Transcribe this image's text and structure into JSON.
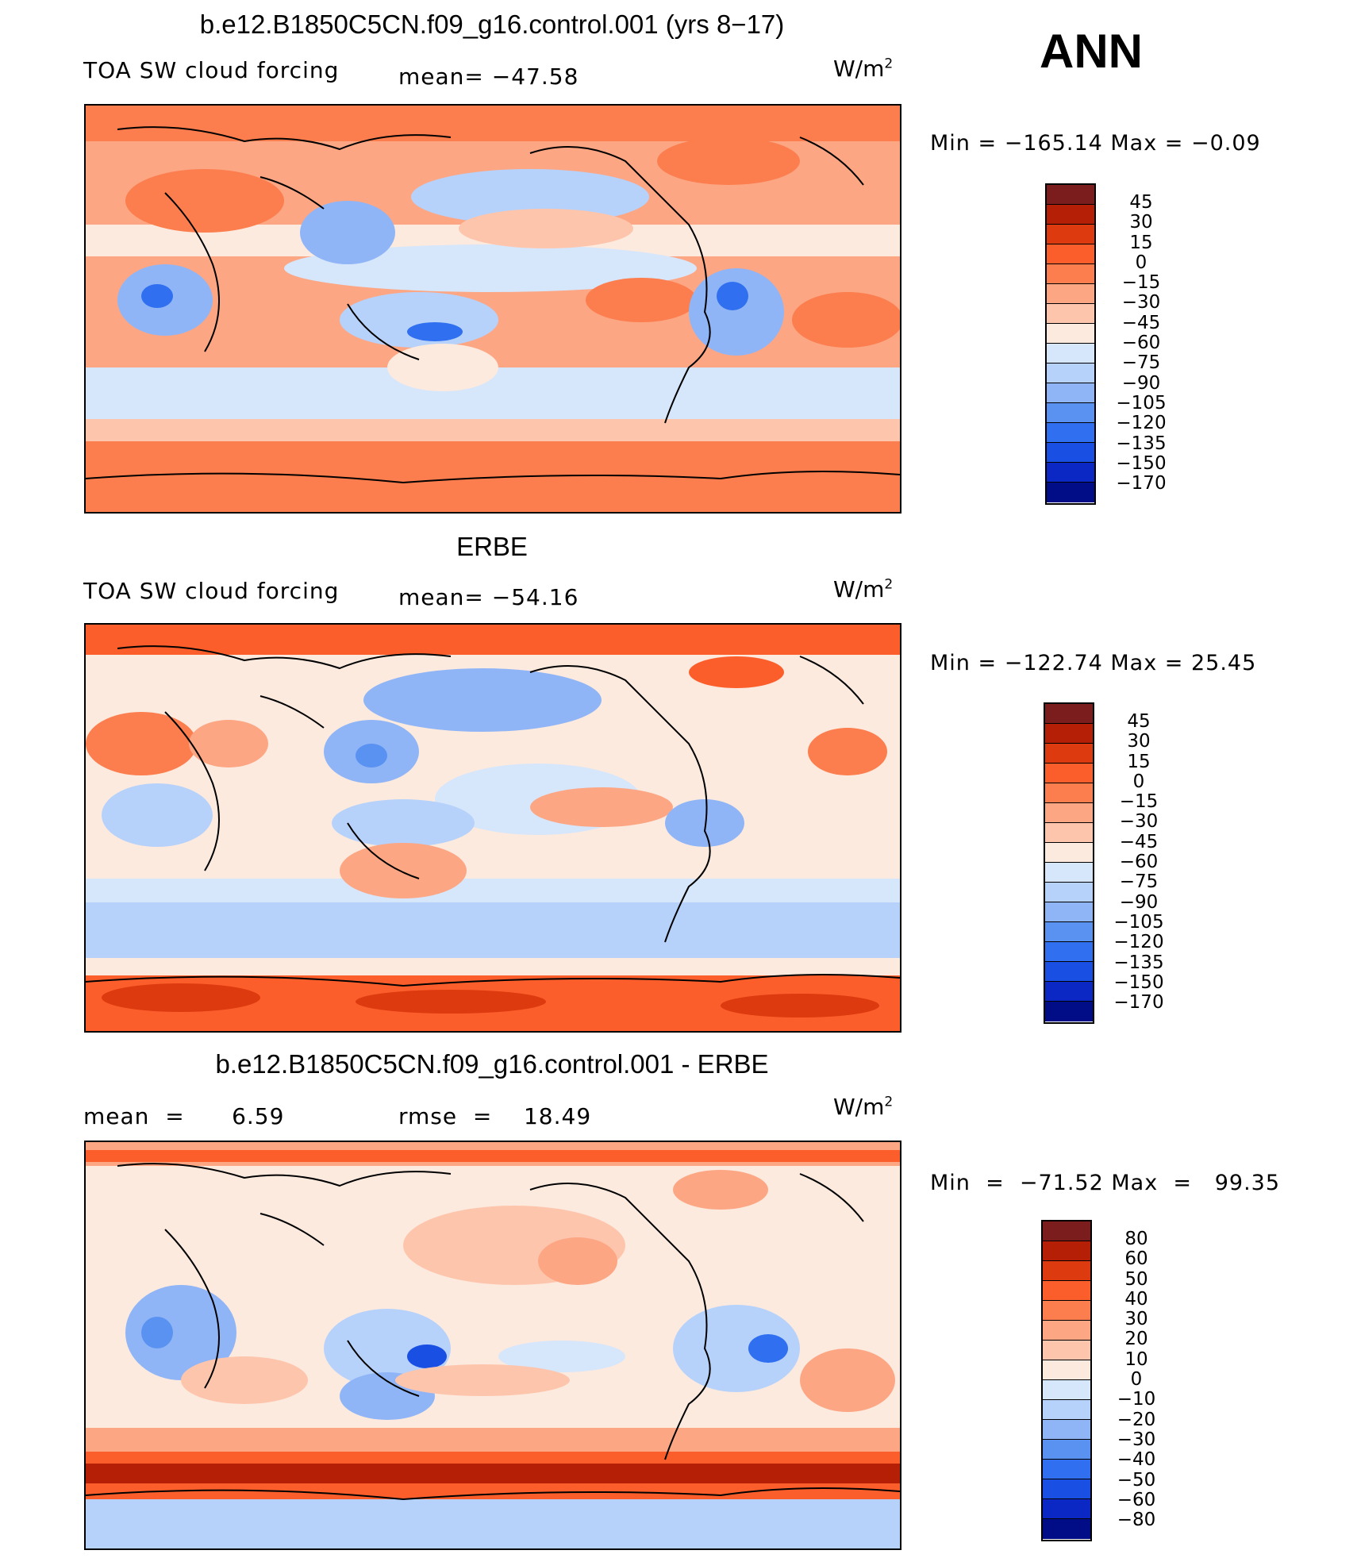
{
  "season": "ANN",
  "palette": {
    "stdlev": [
      "#fbfbfb",
      "#7b1d1d",
      "#b41f06",
      "#dd3a0f",
      "#fb5e2b",
      "#fc7d4d",
      "#fda684",
      "#fec5ad",
      "#fdeade",
      "#d6e6fb",
      "#b6d2fb",
      "#8fb5f7",
      "#5a92f1",
      "#2f6ff0",
      "#1a4fe4",
      "#0b27c4",
      "#000d86"
    ],
    "note": "ordered dark-red to dark-blue"
  },
  "panels": [
    {
      "title": "b.e12.B1850C5CN.f09_g16.control.001 (yrs 8-17)",
      "left_label": "TOA SW cloud forcing",
      "center_label": "mean=  -47.58",
      "units": "W/m",
      "units_sup": "2",
      "min_label": "Min  =  -165.14",
      "max_label": "Max  =   -0.09",
      "colorbar": [
        "45",
        "30",
        "15",
        "0",
        "-15",
        "-30",
        "-45",
        "-60",
        "-75",
        "-90",
        "-105",
        "-120",
        "-135",
        "-150",
        "-170"
      ]
    },
    {
      "title": "ERBE",
      "left_label": "TOA SW cloud forcing",
      "center_label": "mean=  -54.16",
      "units": "W/m",
      "units_sup": "2",
      "min_label": "Min  =  -122.74",
      "max_label": "Max  =   25.45",
      "colorbar": [
        "45",
        "30",
        "15",
        "0",
        "-15",
        "-30",
        "-45",
        "-60",
        "-75",
        "-90",
        "-105",
        "-120",
        "-135",
        "-150",
        "-170"
      ]
    },
    {
      "title": "b.e12.B1850C5CN.f09_g16.control.001 - ERBE",
      "left_label": "mean  =      6.59",
      "center_label": "rmse  =    18.49",
      "units": "W/m",
      "units_sup": "2",
      "min_label": "Min  =  -71.52",
      "max_label": "Max  =   99.35",
      "colorbar": [
        "80",
        "60",
        "50",
        "40",
        "30",
        "20",
        "10",
        "0",
        "-10",
        "-20",
        "-30",
        "-40",
        "-50",
        "-60",
        "-80"
      ]
    }
  ]
}
